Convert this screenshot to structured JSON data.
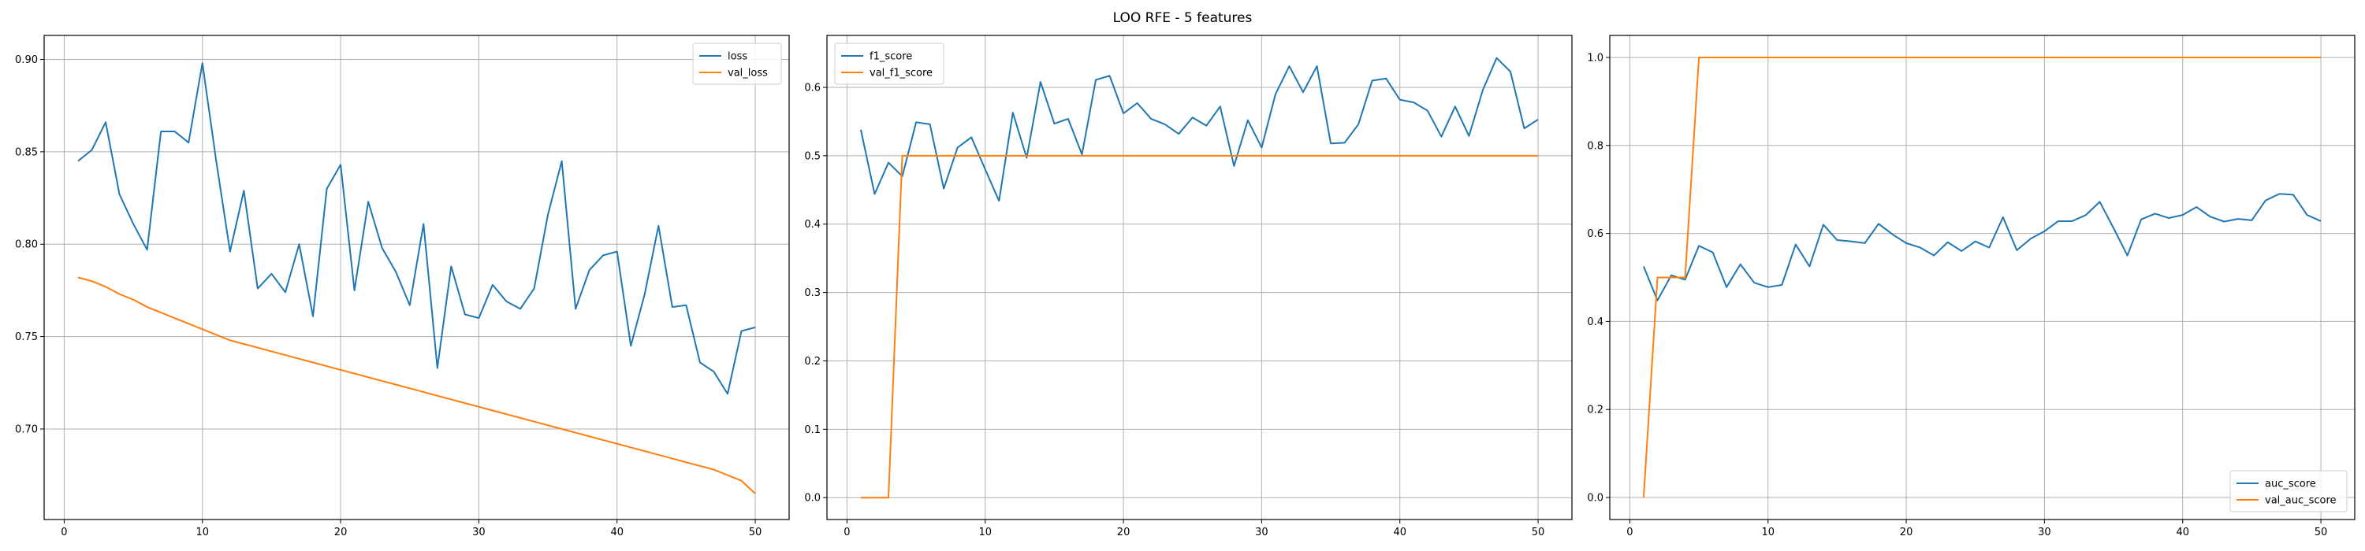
{
  "figure": {
    "title": "LOO RFE - 5 features"
  },
  "colors": {
    "blue": "#1f77b4",
    "orange": "#ff7f0e",
    "grid": "#b0b0b0",
    "axes": "#000000"
  },
  "chart_data": [
    {
      "type": "line",
      "title": "",
      "xlabel": "",
      "ylabel": "",
      "xlim": [
        -1.45,
        52.45
      ],
      "ylim": [
        0.651,
        0.913
      ],
      "xticks": [
        0,
        10,
        20,
        30,
        40,
        50
      ],
      "yticks": [
        0.7,
        0.75,
        0.8,
        0.85,
        0.9
      ],
      "ytick_labels": [
        "0.70",
        "0.75",
        "0.80",
        "0.85",
        "0.90"
      ],
      "grid": true,
      "legend_position": "upper right",
      "x": [
        1,
        2,
        3,
        4,
        5,
        6,
        7,
        8,
        9,
        10,
        11,
        12,
        13,
        14,
        15,
        16,
        17,
        18,
        19,
        20,
        21,
        22,
        23,
        24,
        25,
        26,
        27,
        28,
        29,
        30,
        31,
        32,
        33,
        34,
        35,
        36,
        37,
        38,
        39,
        40,
        41,
        42,
        43,
        44,
        45,
        46,
        47,
        48,
        49,
        50
      ],
      "series": [
        {
          "name": "loss",
          "color": "#1f77b4",
          "values": [
            0.845,
            0.851,
            0.866,
            0.827,
            0.811,
            0.797,
            0.861,
            0.861,
            0.855,
            0.898,
            0.845,
            0.796,
            0.829,
            0.776,
            0.784,
            0.774,
            0.8,
            0.761,
            0.83,
            0.843,
            0.775,
            0.823,
            0.798,
            0.785,
            0.767,
            0.811,
            0.733,
            0.788,
            0.762,
            0.76,
            0.778,
            0.769,
            0.765,
            0.776,
            0.816,
            0.845,
            0.765,
            0.786,
            0.794,
            0.796,
            0.745,
            0.773,
            0.81,
            0.766,
            0.767,
            0.736,
            0.731,
            0.719,
            0.753,
            0.755
          ]
        },
        {
          "name": "val_loss",
          "color": "#ff7f0e",
          "values": [
            0.782,
            0.78,
            0.777,
            0.773,
            0.77,
            0.766,
            0.763,
            0.76,
            0.757,
            0.754,
            0.751,
            0.748,
            0.746,
            0.744,
            0.742,
            0.74,
            0.738,
            0.736,
            0.734,
            0.732,
            0.73,
            0.728,
            0.726,
            0.724,
            0.722,
            0.72,
            0.718,
            0.716,
            0.714,
            0.712,
            0.71,
            0.708,
            0.706,
            0.704,
            0.702,
            0.7,
            0.698,
            0.696,
            0.694,
            0.692,
            0.69,
            0.688,
            0.686,
            0.684,
            0.682,
            0.68,
            0.678,
            0.675,
            0.672,
            0.665
          ]
        }
      ]
    },
    {
      "type": "line",
      "title": "",
      "xlabel": "",
      "ylabel": "",
      "xlim": [
        -1.45,
        52.45
      ],
      "ylim": [
        -0.032,
        0.676
      ],
      "xticks": [
        0,
        10,
        20,
        30,
        40,
        50
      ],
      "yticks": [
        0.0,
        0.1,
        0.2,
        0.3,
        0.4,
        0.5,
        0.6
      ],
      "ytick_labels": [
        "0.0",
        "0.1",
        "0.2",
        "0.3",
        "0.4",
        "0.5",
        "0.6"
      ],
      "grid": true,
      "legend_position": "upper left",
      "x": [
        1,
        2,
        3,
        4,
        5,
        6,
        7,
        8,
        9,
        10,
        11,
        12,
        13,
        14,
        15,
        16,
        17,
        18,
        19,
        20,
        21,
        22,
        23,
        24,
        25,
        26,
        27,
        28,
        29,
        30,
        31,
        32,
        33,
        34,
        35,
        36,
        37,
        38,
        39,
        40,
        41,
        42,
        43,
        44,
        45,
        46,
        47,
        48,
        49,
        50
      ],
      "series": [
        {
          "name": "f1_score",
          "color": "#1f77b4",
          "values": [
            0.538,
            0.444,
            0.49,
            0.47,
            0.549,
            0.546,
            0.452,
            0.512,
            0.527,
            0.48,
            0.434,
            0.563,
            0.497,
            0.608,
            0.547,
            0.554,
            0.502,
            0.611,
            0.617,
            0.562,
            0.577,
            0.554,
            0.546,
            0.532,
            0.556,
            0.544,
            0.572,
            0.485,
            0.552,
            0.512,
            0.59,
            0.631,
            0.593,
            0.631,
            0.518,
            0.519,
            0.546,
            0.61,
            0.613,
            0.582,
            0.578,
            0.566,
            0.528,
            0.572,
            0.529,
            0.596,
            0.643,
            0.623,
            0.54,
            0.553
          ]
        },
        {
          "name": "val_f1_score",
          "color": "#ff7f0e",
          "values": [
            0.0,
            0.0,
            0.0,
            0.5,
            0.5,
            0.5,
            0.5,
            0.5,
            0.5,
            0.5,
            0.5,
            0.5,
            0.5,
            0.5,
            0.5,
            0.5,
            0.5,
            0.5,
            0.5,
            0.5,
            0.5,
            0.5,
            0.5,
            0.5,
            0.5,
            0.5,
            0.5,
            0.5,
            0.5,
            0.5,
            0.5,
            0.5,
            0.5,
            0.5,
            0.5,
            0.5,
            0.5,
            0.5,
            0.5,
            0.5,
            0.5,
            0.5,
            0.5,
            0.5,
            0.5,
            0.5,
            0.5,
            0.5,
            0.5,
            0.5
          ]
        }
      ]
    },
    {
      "type": "line",
      "title": "",
      "xlabel": "",
      "ylabel": "",
      "xlim": [
        -1.45,
        52.45
      ],
      "ylim": [
        -0.05,
        1.05
      ],
      "xticks": [
        0,
        10,
        20,
        30,
        40,
        50
      ],
      "yticks": [
        0.0,
        0.2,
        0.4,
        0.6,
        0.8,
        1.0
      ],
      "ytick_labels": [
        "0.0",
        "0.2",
        "0.4",
        "0.6",
        "0.8",
        "1.0"
      ],
      "grid": true,
      "legend_position": "lower right",
      "x": [
        1,
        2,
        3,
        4,
        5,
        6,
        7,
        8,
        9,
        10,
        11,
        12,
        13,
        14,
        15,
        16,
        17,
        18,
        19,
        20,
        21,
        22,
        23,
        24,
        25,
        26,
        27,
        28,
        29,
        30,
        31,
        32,
        33,
        34,
        35,
        36,
        37,
        38,
        39,
        40,
        41,
        42,
        43,
        44,
        45,
        46,
        47,
        48,
        49,
        50
      ],
      "series": [
        {
          "name": "auc_score",
          "color": "#1f77b4",
          "values": [
            0.525,
            0.448,
            0.505,
            0.495,
            0.572,
            0.557,
            0.478,
            0.53,
            0.488,
            0.478,
            0.483,
            0.575,
            0.525,
            0.62,
            0.585,
            0.582,
            0.578,
            0.622,
            0.598,
            0.578,
            0.568,
            0.55,
            0.58,
            0.56,
            0.582,
            0.568,
            0.637,
            0.562,
            0.588,
            0.605,
            0.628,
            0.628,
            0.642,
            0.672,
            0.612,
            0.55,
            0.632,
            0.645,
            0.635,
            0.642,
            0.66,
            0.638,
            0.627,
            0.633,
            0.63,
            0.675,
            0.69,
            0.688,
            0.642,
            0.628
          ]
        },
        {
          "name": "val_auc_score",
          "color": "#ff7f0e",
          "values": [
            0.0,
            0.5,
            0.5,
            0.5,
            1.0,
            1.0,
            1.0,
            1.0,
            1.0,
            1.0,
            1.0,
            1.0,
            1.0,
            1.0,
            1.0,
            1.0,
            1.0,
            1.0,
            1.0,
            1.0,
            1.0,
            1.0,
            1.0,
            1.0,
            1.0,
            1.0,
            1.0,
            1.0,
            1.0,
            1.0,
            1.0,
            1.0,
            1.0,
            1.0,
            1.0,
            1.0,
            1.0,
            1.0,
            1.0,
            1.0,
            1.0,
            1.0,
            1.0,
            1.0,
            1.0,
            1.0,
            1.0,
            1.0,
            1.0,
            1.0
          ]
        }
      ]
    }
  ]
}
